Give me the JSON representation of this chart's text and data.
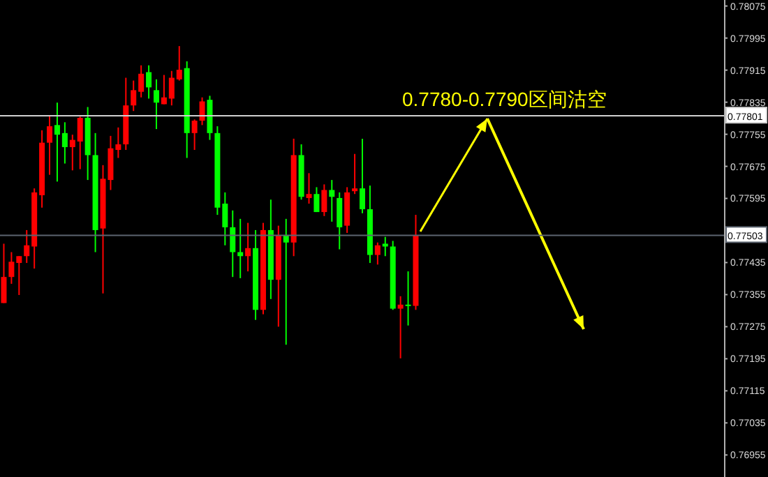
{
  "chart_data": {
    "type": "candlestick",
    "categories": [
      null,
      null,
      null,
      null,
      null,
      null,
      null,
      null,
      null,
      null,
      null,
      null,
      null,
      null,
      null,
      null,
      null,
      null,
      null,
      null,
      null,
      null,
      null,
      null,
      null,
      null,
      null,
      null,
      null,
      null,
      null,
      null,
      null,
      null,
      null,
      null,
      null,
      null,
      null,
      null,
      null,
      null,
      null,
      null,
      null,
      null,
      null,
      null,
      null,
      null,
      null,
      null,
      null,
      null,
      null,
      null,
      null,
      null,
      null,
      null,
      null,
      null,
      null,
      null,
      null,
      null,
      null,
      null,
      null,
      null,
      null,
      null,
      null,
      null,
      null,
      null,
      null,
      null,
      null,
      null,
      null,
      null,
      null,
      null,
      null,
      null,
      null,
      null,
      null,
      null,
      null,
      null,
      null,
      null,
      null
    ],
    "ohlc": [
      [
        0.77334,
        0.77482,
        0.77334,
        0.77399
      ],
      [
        0.77399,
        0.77461,
        0.77382,
        0.77437
      ],
      [
        0.77434,
        0.77451,
        0.77354,
        0.77451
      ],
      [
        0.77451,
        0.77516,
        0.77434,
        0.77478
      ],
      [
        0.77475,
        0.7762,
        0.7742,
        0.7761
      ],
      [
        0.77603,
        0.77765,
        0.77572,
        0.77734
      ],
      [
        0.77734,
        0.77803,
        0.77654,
        0.77775
      ],
      [
        0.77778,
        0.77834,
        0.77637,
        0.77754
      ],
      [
        0.77758,
        0.77785,
        0.77682,
        0.77723
      ],
      [
        0.77723,
        0.77754,
        0.77665,
        0.77741
      ],
      [
        0.77737,
        0.77799,
        0.77668,
        0.77796
      ],
      [
        0.77796,
        0.77823,
        0.77641,
        0.77703
      ],
      [
        0.77703,
        0.77758,
        0.77461,
        0.77516
      ],
      [
        0.7752,
        0.77678,
        0.77358,
        0.77644
      ],
      [
        0.77641,
        0.77751,
        0.77616,
        0.7772
      ],
      [
        0.77716,
        0.77772,
        0.77696,
        0.7773
      ],
      [
        0.7773,
        0.77896,
        0.77716,
        0.77827
      ],
      [
        0.77827,
        0.77889,
        0.77813,
        0.77865
      ],
      [
        0.77861,
        0.77927,
        0.77847,
        0.77906
      ],
      [
        0.7791,
        0.77927,
        0.77844,
        0.77872
      ],
      [
        0.77865,
        0.77892,
        0.77768,
        0.77834
      ],
      [
        0.7783,
        0.77903,
        0.7783,
        0.77847
      ],
      [
        0.77844,
        0.77913,
        0.77827,
        0.77896
      ],
      [
        0.77892,
        0.77975,
        0.77889,
        0.77916
      ],
      [
        0.7792,
        0.77937,
        0.77696,
        0.77758
      ],
      [
        0.77758,
        0.77792,
        0.77716,
        0.77789
      ],
      [
        0.77789,
        0.77847,
        0.77778,
        0.77837
      ],
      [
        0.77841,
        0.77851,
        0.77741,
        0.77758
      ],
      [
        0.77758,
        0.77775,
        0.77554,
        0.77572
      ],
      [
        0.77582,
        0.7761,
        0.77478,
        0.77523
      ],
      [
        0.77523,
        0.77565,
        0.77399,
        0.77461
      ],
      [
        0.77461,
        0.77544,
        0.77396,
        0.77451
      ],
      [
        0.77451,
        0.77534,
        0.77413,
        0.77471
      ],
      [
        0.77471,
        0.77516,
        0.77292,
        0.77317
      ],
      [
        0.77317,
        0.77534,
        0.77306,
        0.77516
      ],
      [
        0.77516,
        0.77592,
        0.77344,
        0.77392
      ],
      [
        0.77392,
        0.77527,
        0.77275,
        0.77502
      ],
      [
        0.77502,
        0.77544,
        0.7723,
        0.77485
      ],
      [
        0.77485,
        0.77744,
        0.77451,
        0.77703
      ],
      [
        0.77703,
        0.7773,
        0.77592,
        0.77599
      ],
      [
        0.77596,
        0.77658,
        0.77582,
        0.77606
      ],
      [
        0.77606,
        0.77623,
        0.77561,
        0.77561
      ],
      [
        0.77561,
        0.7763,
        0.77551,
        0.77616
      ],
      [
        0.77616,
        0.77641,
        0.77537,
        0.77599
      ],
      [
        0.77596,
        0.7761,
        0.77468,
        0.77523
      ],
      [
        0.77527,
        0.77623,
        0.77509,
        0.7761
      ],
      [
        0.77613,
        0.77706,
        0.77606,
        0.7762
      ],
      [
        0.7762,
        0.77744,
        0.77558,
        0.77568
      ],
      [
        0.77568,
        0.77627,
        0.77434,
        0.77454
      ],
      [
        0.77454,
        0.77485,
        0.7743,
        0.77478
      ],
      [
        0.77482,
        0.77499,
        0.77451,
        0.77475
      ],
      [
        0.77475,
        0.77489,
        0.77317,
        0.7732
      ],
      [
        0.7732,
        0.77351,
        0.77196,
        0.7733
      ],
      [
        0.7733,
        0.77413,
        0.77278,
        0.77327
      ],
      [
        0.77327,
        0.77554,
        0.77317,
        0.77502
      ],
      null,
      null,
      null,
      null,
      null,
      null,
      null,
      null,
      null,
      null,
      null,
      null,
      null,
      null,
      null,
      null,
      null,
      null,
      null,
      null,
      null,
      null,
      null,
      null,
      null,
      null,
      null,
      null,
      null,
      null,
      null,
      null,
      null,
      null,
      null,
      null,
      null,
      null,
      null,
      null
    ],
    "colors": [
      "#ff0000",
      "#ff0000",
      "#ff0000",
      "#ff0000",
      "#ff0000",
      "#ff0000",
      "#ff0000",
      "#00ff00",
      "#00ff00",
      "#ff0000",
      "#ff0000",
      "#00ff00",
      "#00ff00",
      "#ff0000",
      "#ff0000",
      "#ff0000",
      "#ff0000",
      "#ff0000",
      "#ff0000",
      "#00ff00",
      "#00ff00",
      "#ff0000",
      "#ff0000",
      "#ff0000",
      "#00ff00",
      "#ff0000",
      "#ff0000",
      "#00ff00",
      "#00ff00",
      "#00ff00",
      "#00ff00",
      "#00ff00",
      "#ff0000",
      "#00ff00",
      "#ff0000",
      "#00ff00",
      "#ff0000",
      "#00ff00",
      "#ff0000",
      "#00ff00",
      "#ff0000",
      "#00ff00",
      "#ff0000",
      "#00ff00",
      "#00ff00",
      "#ff0000",
      "#ff0000",
      "#00ff00",
      "#00ff00",
      "#ff0000",
      "#00ff00",
      "#00ff00",
      "#ff0000",
      "#00ff00",
      "#ff0000",
      null,
      null,
      null,
      null,
      null,
      null,
      null,
      null,
      null,
      null,
      null,
      null,
      null,
      null,
      null,
      null,
      null,
      null,
      null,
      null,
      null,
      null,
      null,
      null,
      null,
      null,
      null,
      null,
      null,
      null,
      null,
      null,
      null,
      null,
      null,
      null,
      null,
      null,
      null,
      null
    ],
    "ylim": [
      0.769,
      0.7809
    ],
    "yticks": [
      0.78075,
      0.77995,
      0.77915,
      0.77835,
      0.77755,
      0.77675,
      0.77595,
      0.77435,
      0.77355,
      0.77275,
      0.77195,
      0.77115,
      0.77035,
      0.76955
    ],
    "ref_lines": [
      {
        "axis": "y",
        "value": 0.77801,
        "label": "0.77801",
        "color": "#d0d0d0"
      },
      {
        "axis": "y",
        "value": 0.77503,
        "label": "0.77503",
        "color": "#5c6470"
      }
    ],
    "annotations": [
      "0.7780-0.7790区间沽空"
    ],
    "tick_labels": "y"
  }
}
